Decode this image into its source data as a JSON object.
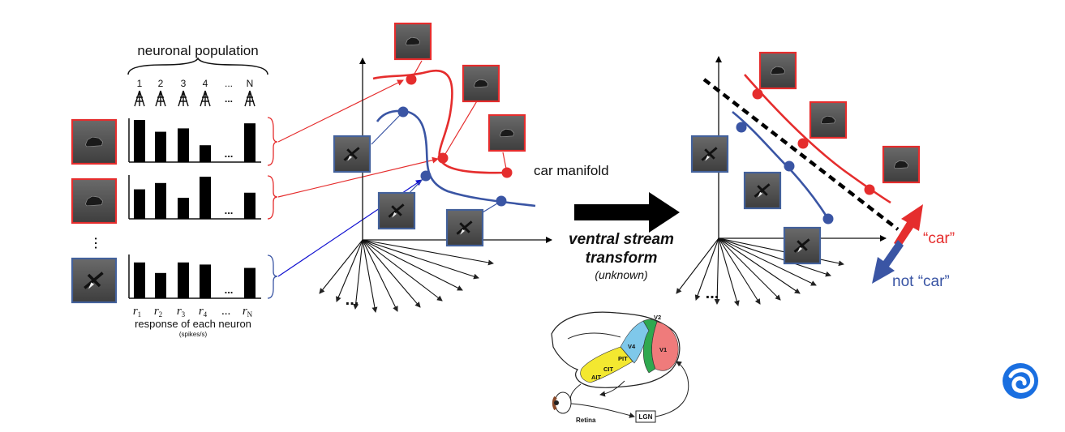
{
  "population": {
    "title": "neuronal population",
    "neuron_labels": [
      "1",
      "2",
      "3",
      "4",
      "...",
      "N"
    ],
    "ellipsis_row": "...",
    "response_vars": [
      "r",
      "r",
      "r",
      "r",
      "...",
      "r"
    ],
    "response_subs": [
      "1",
      "2",
      "3",
      "4",
      "",
      "N"
    ],
    "caption": "response of each neuron",
    "units": "(spikes/s)",
    "rows": [
      {
        "label": "car-1",
        "frame": "red",
        "values": [
          1.0,
          0.72,
          0.8,
          0.4,
          null,
          0.92
        ]
      },
      {
        "label": "car-2",
        "frame": "red",
        "values": [
          0.7,
          0.85,
          0.5,
          1.0,
          null,
          0.62
        ]
      },
      {
        "label": "plane",
        "frame": "blue",
        "values": [
          0.85,
          0.6,
          0.85,
          0.8,
          null,
          0.72
        ]
      }
    ]
  },
  "manifold": {
    "label": "car manifold",
    "axes_ellipsis": "..."
  },
  "transform": {
    "title_line1": "ventral stream",
    "title_line2": "transform",
    "subtitle": "(unknown)"
  },
  "right_panel": {
    "positive_label": "“car”",
    "negative_label": "not “car”",
    "axes_ellipsis": "..."
  },
  "brain": {
    "areas": [
      "V2",
      "V4",
      "V1",
      "PIT",
      "CIT",
      "AIT"
    ],
    "retina": "Retina",
    "lgn": "LGN"
  },
  "colors": {
    "car": "#e52d2d",
    "not_car": "#3a55a4",
    "frame_blue": "#43619b",
    "v1": "#ef7b7b",
    "v2": "#2fa84f",
    "v4": "#7fc8ea",
    "it": "#f3e830",
    "logo": "#1a6fe0"
  },
  "logo": {
    "name": "swirl-logo-icon"
  }
}
